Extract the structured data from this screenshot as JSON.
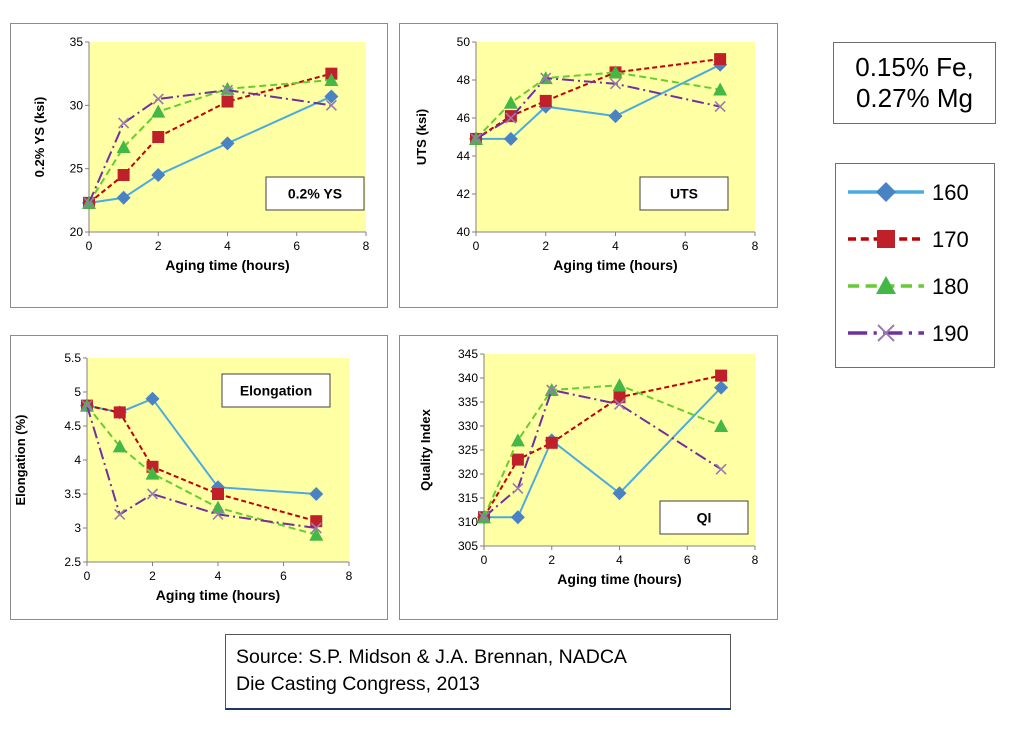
{
  "composition": {
    "line1": "0.15% Fe,",
    "line2": "0.27% Mg"
  },
  "source": {
    "line1": "Source:  S.P. Midson & J.A. Brennan, NADCA",
    "line2": "Die Casting Congress, 2013"
  },
  "series_styles": [
    {
      "name": "160",
      "color": "#4aabe0",
      "marker": "diamond",
      "marker_color": "#4a83c4",
      "dash": ""
    },
    {
      "name": "170",
      "color": "#c00000",
      "marker": "square",
      "marker_color": "#c0202a",
      "dash": "5,3"
    },
    {
      "name": "180",
      "color": "#66cc33",
      "marker": "triangle",
      "marker_color": "#44b844",
      "dash": "7,4"
    },
    {
      "name": "190",
      "color": "#7030a0",
      "marker": "x",
      "marker_color": "#9a7ab0",
      "dash": "12,4,2,4"
    }
  ],
  "legend": {
    "entries": [
      "160",
      "170",
      "180",
      "190"
    ]
  },
  "chart_data": [
    {
      "type": "line",
      "id": "ys",
      "box_label": "0.2% YS",
      "xlabel": "Aging time (hours)",
      "ylabel": "0.2% YS (ksi)",
      "xlim": [
        0,
        8
      ],
      "xticks": [
        0,
        2,
        4,
        6,
        8
      ],
      "ylim": [
        20,
        35
      ],
      "yticks": [
        20,
        25,
        30,
        35
      ],
      "x": [
        0,
        1,
        2,
        4,
        7
      ],
      "series": [
        {
          "name": "160",
          "values": [
            22.3,
            22.7,
            24.5,
            27.0,
            30.7
          ]
        },
        {
          "name": "170",
          "values": [
            22.3,
            24.5,
            27.5,
            30.3,
            32.5
          ]
        },
        {
          "name": "180",
          "values": [
            22.3,
            26.7,
            29.5,
            31.3,
            32.0
          ]
        },
        {
          "name": "190",
          "values": [
            22.3,
            28.6,
            30.5,
            31.2,
            30.0
          ]
        }
      ]
    },
    {
      "type": "line",
      "id": "uts",
      "box_label": "UTS",
      "xlabel": "Aging time (hours)",
      "ylabel": "UTS (ksi)",
      "xlim": [
        0,
        8
      ],
      "xticks": [
        0,
        2,
        4,
        6,
        8
      ],
      "ylim": [
        40,
        50
      ],
      "yticks": [
        40,
        42,
        44,
        46,
        48,
        50
      ],
      "x": [
        0,
        1,
        2,
        4,
        7
      ],
      "series": [
        {
          "name": "160",
          "values": [
            44.9,
            44.9,
            46.6,
            46.1,
            48.8
          ]
        },
        {
          "name": "170",
          "values": [
            44.9,
            46.1,
            46.9,
            48.4,
            49.1
          ]
        },
        {
          "name": "180",
          "values": [
            44.9,
            46.8,
            48.1,
            48.4,
            47.5
          ]
        },
        {
          "name": "190",
          "values": [
            44.9,
            46.0,
            48.1,
            47.8,
            46.6
          ]
        }
      ]
    },
    {
      "type": "line",
      "id": "elong",
      "box_label": "Elongation",
      "xlabel": "Aging time (hours)",
      "ylabel": "Elongation (%)",
      "xlim": [
        0,
        8
      ],
      "xticks": [
        0,
        2,
        4,
        6,
        8
      ],
      "ylim": [
        2.5,
        5.5
      ],
      "yticks": [
        2.5,
        3,
        3.5,
        4,
        4.5,
        5,
        5.5
      ],
      "x": [
        0,
        1,
        2,
        4,
        7
      ],
      "series": [
        {
          "name": "160",
          "values": [
            4.8,
            4.7,
            4.9,
            3.6,
            3.5
          ]
        },
        {
          "name": "170",
          "values": [
            4.8,
            4.7,
            3.9,
            3.5,
            3.1
          ]
        },
        {
          "name": "180",
          "values": [
            4.8,
            4.2,
            3.8,
            3.3,
            2.9
          ]
        },
        {
          "name": "190",
          "values": [
            4.8,
            3.2,
            3.5,
            3.2,
            3.0
          ]
        }
      ]
    },
    {
      "type": "line",
      "id": "qi",
      "box_label": "QI",
      "xlabel": "Aging time (hours)",
      "ylabel": "Quality Index",
      "xlim": [
        0,
        8
      ],
      "xticks": [
        0,
        2,
        4,
        6,
        8
      ],
      "ylim": [
        305,
        345
      ],
      "yticks": [
        305,
        310,
        315,
        320,
        325,
        330,
        335,
        340,
        345
      ],
      "x": [
        0,
        1,
        2,
        4,
        7
      ],
      "series": [
        {
          "name": "160",
          "values": [
            311,
            311,
            327,
            316,
            338
          ]
        },
        {
          "name": "170",
          "values": [
            311,
            323,
            326.5,
            336,
            340.5
          ]
        },
        {
          "name": "180",
          "values": [
            311,
            327,
            337.5,
            338.5,
            330
          ]
        },
        {
          "name": "190",
          "values": [
            311,
            317,
            337.5,
            334.5,
            321
          ]
        }
      ]
    }
  ]
}
